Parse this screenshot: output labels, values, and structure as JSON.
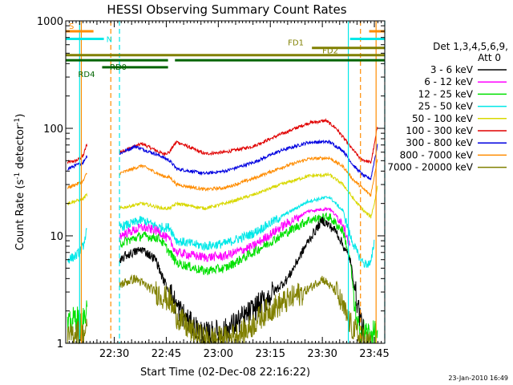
{
  "chart_data": {
    "type": "line",
    "title": "HESSI Observing Summary Count Rates",
    "xlabel": "Start Time (02-Dec-08 22:16:22)",
    "ylabel_main": "Count Rate (s",
    "ylabel_sup": "-1",
    "ylabel_mid": " detector",
    "ylabel_sup2": "-1",
    "ylabel_end": ")",
    "x_range_min": [
      0,
      92
    ],
    "yscale": "log",
    "ylim": [
      1,
      1000
    ],
    "x_ticks": [
      {
        "t": 14,
        "label": "22:30"
      },
      {
        "t": 29,
        "label": "22:45"
      },
      {
        "t": 44,
        "label": "23:00"
      },
      {
        "t": 59,
        "label": "23:15"
      },
      {
        "t": 74,
        "label": "23:30"
      },
      {
        "t": 89,
        "label": "23:45"
      }
    ],
    "y_ticks": [
      {
        "v": 1,
        "label": "1"
      },
      {
        "v": 10,
        "label": "10"
      },
      {
        "v": 100,
        "label": "100"
      },
      {
        "v": 1000,
        "label": "1000"
      }
    ],
    "legend": {
      "header": [
        "Det 1,3,4,5,6,9,",
        "Att 0"
      ],
      "position": "right",
      "items": [
        {
          "label": "3 - 6 keV",
          "color": "#000000"
        },
        {
          "label": "6 - 12 keV",
          "color": "#ff00ff"
        },
        {
          "label": "12 - 25 keV",
          "color": "#00e000"
        },
        {
          "label": "25 - 50 keV",
          "color": "#00e8e8"
        },
        {
          "label": "50 - 100 keV",
          "color": "#d8d800"
        },
        {
          "label": "100 - 300 keV",
          "color": "#e00000"
        },
        {
          "label": "300 - 800 keV",
          "color": "#0000e0"
        },
        {
          "label": "800 - 7000 keV",
          "color": "#ff8c00"
        },
        {
          "label": "7000 - 20000 keV",
          "color": "#808000"
        }
      ]
    },
    "flags": [
      {
        "name": "S",
        "color": "#ff8c00",
        "v": 800,
        "start": 0,
        "end": 8,
        "label_at": "start"
      },
      {
        "name": "N",
        "color": "#00e8e8",
        "v": 680,
        "start": 0,
        "end": 11,
        "label_at": "end"
      },
      {
        "name": "N",
        "color": "#00e8e8",
        "v": 680,
        "start": 82,
        "end": 92,
        "label_at": "none"
      },
      {
        "name": "S",
        "color": "#ff8c00",
        "v": 800,
        "start": 87.5,
        "end": 92,
        "label_at": "none"
      },
      {
        "name": "FD1",
        "color": "#808000",
        "v": 560,
        "start": 71,
        "end": 92,
        "label_at": "start"
      },
      {
        "name": "FD2",
        "color": "#808000",
        "v": 480,
        "start": 0,
        "end": 92,
        "label_at": "end-mid"
      },
      {
        "name": "RD0",
        "color": "#006400",
        "v": 430,
        "start": 0,
        "end": 92,
        "label_at": "gap",
        "gap": [
          29.5,
          31.5
        ]
      },
      {
        "name": "RD4",
        "color": "#006400",
        "v": 370,
        "start": 10.5,
        "end": 29.5,
        "label_at": "start"
      }
    ],
    "vlines": [
      {
        "t": 4.5,
        "color": "#ff8c00",
        "dash": false
      },
      {
        "t": 4.0,
        "color": "#00e8e8",
        "dash": false
      },
      {
        "t": 13.0,
        "color": "#ff8c00",
        "dash": true
      },
      {
        "t": 15.5,
        "color": "#00e8e8",
        "dash": true
      },
      {
        "t": 81.5,
        "color": "#00e8e8",
        "dash": false
      },
      {
        "t": 85.0,
        "color": "#ff8c00",
        "dash": true
      },
      {
        "t": 89.5,
        "color": "#ff8c00",
        "dash": false
      },
      {
        "t": 92.0,
        "color": "#00e8e8",
        "dash": true
      }
    ],
    "series": [
      {
        "color": "#e00000",
        "points": [
          [
            0.5,
            48
          ],
          [
            3,
            50
          ],
          [
            5,
            55
          ],
          [
            6,
            70
          ],
          [
            15.5,
            60
          ],
          [
            22,
            72
          ],
          [
            28,
            58
          ],
          [
            30,
            60
          ],
          [
            30.5,
            65
          ],
          [
            32,
            75
          ],
          [
            40,
            58
          ],
          [
            46,
            60
          ],
          [
            54,
            68
          ],
          [
            62,
            88
          ],
          [
            70,
            112
          ],
          [
            75,
            118
          ],
          [
            78,
            100
          ],
          [
            82,
            68
          ],
          [
            85,
            52
          ],
          [
            88,
            48
          ],
          [
            89,
            70
          ],
          [
            90,
            110
          ]
        ]
      },
      {
        "color": "#0000e0",
        "points": [
          [
            0.5,
            42
          ],
          [
            5,
            48
          ],
          [
            6,
            55
          ],
          [
            15.5,
            58
          ],
          [
            20,
            68
          ],
          [
            27,
            56
          ],
          [
            30,
            50
          ],
          [
            32,
            42
          ],
          [
            40,
            38
          ],
          [
            46,
            40
          ],
          [
            54,
            48
          ],
          [
            62,
            62
          ],
          [
            70,
            74
          ],
          [
            76,
            75
          ],
          [
            80,
            62
          ],
          [
            83,
            45
          ],
          [
            86,
            36
          ],
          [
            88,
            34
          ],
          [
            89,
            50
          ],
          [
            90,
            72
          ]
        ]
      },
      {
        "color": "#ff8c00",
        "points": [
          [
            0.5,
            28
          ],
          [
            5,
            32
          ],
          [
            6,
            38
          ],
          [
            15.5,
            38
          ],
          [
            22,
            45
          ],
          [
            28,
            36
          ],
          [
            30,
            35
          ],
          [
            32,
            30
          ],
          [
            40,
            27
          ],
          [
            46,
            28
          ],
          [
            54,
            34
          ],
          [
            62,
            43
          ],
          [
            70,
            52
          ],
          [
            76,
            53
          ],
          [
            80,
            44
          ],
          [
            83,
            33
          ],
          [
            86,
            27
          ],
          [
            88,
            24
          ],
          [
            89,
            36
          ],
          [
            90,
            55
          ]
        ]
      },
      {
        "color": "#d8d800",
        "points": [
          [
            0.5,
            20
          ],
          [
            5,
            22
          ],
          [
            6,
            24
          ],
          [
            15.5,
            18
          ],
          [
            22,
            20
          ],
          [
            28,
            18
          ],
          [
            30,
            18
          ],
          [
            32,
            20
          ],
          [
            40,
            18
          ],
          [
            46,
            20
          ],
          [
            54,
            24
          ],
          [
            62,
            30
          ],
          [
            70,
            36
          ],
          [
            76,
            37
          ],
          [
            80,
            30
          ],
          [
            83,
            22
          ],
          [
            86,
            17
          ],
          [
            88,
            15
          ],
          [
            89,
            20
          ],
          [
            90,
            30
          ]
        ]
      },
      {
        "color": "#00e8e8",
        "points": [
          [
            0.5,
            6.0
          ],
          [
            3,
            6.5
          ],
          [
            5,
            8
          ],
          [
            6,
            11
          ],
          [
            15.5,
            12
          ],
          [
            22,
            14
          ],
          [
            27,
            12
          ],
          [
            30,
            12
          ],
          [
            32,
            9
          ],
          [
            40,
            8
          ],
          [
            46,
            8.5
          ],
          [
            54,
            10.5
          ],
          [
            62,
            15
          ],
          [
            70,
            21
          ],
          [
            76,
            23
          ],
          [
            80,
            17
          ],
          [
            82,
            10
          ],
          [
            84,
            7
          ],
          [
            86,
            5.5
          ],
          [
            88,
            5.5
          ],
          [
            89,
            9
          ]
        ]
      },
      {
        "color": "#ff00ff",
        "points": [
          [
            15.5,
            10
          ],
          [
            22,
            12
          ],
          [
            27,
            11
          ],
          [
            30,
            9
          ],
          [
            32,
            7
          ],
          [
            40,
            6.3
          ],
          [
            46,
            6.5
          ],
          [
            54,
            8
          ],
          [
            62,
            12
          ],
          [
            70,
            17
          ],
          [
            76,
            18
          ],
          [
            80,
            13
          ],
          [
            82,
            8
          ]
        ]
      },
      {
        "color": "#00e000",
        "points": [
          [
            0.5,
            1.4
          ],
          [
            3,
            1.8
          ],
          [
            4.5,
            1.5
          ],
          [
            15.5,
            8.5
          ],
          [
            22,
            10
          ],
          [
            27,
            9.5
          ],
          [
            30,
            7
          ],
          [
            32,
            5.6
          ],
          [
            40,
            4.7
          ],
          [
            46,
            5
          ],
          [
            54,
            7
          ],
          [
            62,
            10
          ],
          [
            70,
            14
          ],
          [
            76,
            15
          ],
          [
            80,
            11
          ],
          [
            82,
            6
          ],
          [
            84,
            1.4
          ],
          [
            88,
            1.2
          ],
          [
            90,
            1.3
          ]
        ]
      },
      {
        "color": "#000000",
        "points": [
          [
            15.5,
            5.5
          ],
          [
            17,
            6.5
          ],
          [
            22,
            7.5
          ],
          [
            26,
            6
          ],
          [
            28,
            4
          ],
          [
            30,
            3
          ],
          [
            32,
            2.2
          ],
          [
            36,
            1.5
          ],
          [
            40,
            1.2
          ],
          [
            46,
            1.3
          ],
          [
            52,
            1.8
          ],
          [
            58,
            2.6
          ],
          [
            64,
            4
          ],
          [
            70,
            9
          ],
          [
            74,
            14
          ],
          [
            78,
            11
          ],
          [
            82,
            6
          ],
          [
            84,
            2.5
          ],
          [
            86,
            1.2
          ]
        ]
      },
      {
        "color": "#808000",
        "points": [
          [
            0.5,
            1.1
          ],
          [
            3,
            1.3
          ],
          [
            5,
            1.2
          ],
          [
            15.5,
            3.5
          ],
          [
            20,
            4
          ],
          [
            26,
            3
          ],
          [
            30,
            2.5
          ],
          [
            32,
            1.8
          ],
          [
            36,
            1.3
          ],
          [
            40,
            1.1
          ],
          [
            46,
            1.1
          ],
          [
            52,
            1.3
          ],
          [
            58,
            2
          ],
          [
            64,
            2.5
          ],
          [
            70,
            3.2
          ],
          [
            74,
            4
          ],
          [
            78,
            3
          ],
          [
            82,
            1.5
          ],
          [
            85,
            1.1
          ],
          [
            88,
            1.0
          ]
        ]
      }
    ],
    "timestamp": "23-Jan-2010 16:49"
  }
}
